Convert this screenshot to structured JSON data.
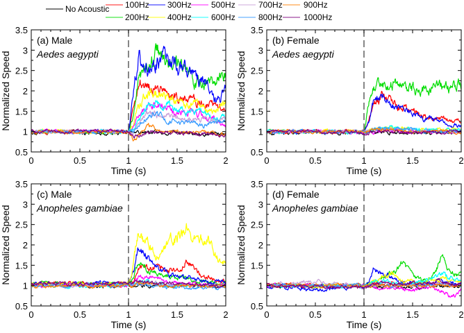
{
  "chart_data": {
    "type": "line",
    "legend": {
      "placement": "top",
      "entries": [
        {
          "name": "No Acoustic",
          "color": "#000000"
        },
        {
          "name": "100Hz",
          "color": "#ff0000"
        },
        {
          "name": "200Hz",
          "color": "#00dd00"
        },
        {
          "name": "300Hz",
          "color": "#0000ff"
        },
        {
          "name": "400Hz",
          "color": "#ffff00"
        },
        {
          "name": "500Hz",
          "color": "#ff00ff"
        },
        {
          "name": "600Hz",
          "color": "#00ffff"
        },
        {
          "name": "700Hz",
          "color": "#c8a0d8"
        },
        {
          "name": "800Hz",
          "color": "#3399ff"
        },
        {
          "name": "900Hz",
          "color": "#ff8000"
        },
        {
          "name": "1000Hz",
          "color": "#800080"
        }
      ]
    },
    "xlabel": "Time (s)",
    "ylabel": "Normalized Speed",
    "xlim": [
      0,
      2
    ],
    "ylim": [
      0.5,
      3.5
    ],
    "xticks": [
      "0",
      "0.5",
      "1",
      "1.5",
      "2"
    ],
    "yticks": [
      "0.5",
      "1",
      "1.5",
      "2",
      "2.5",
      "3",
      "3.5"
    ],
    "stimulus_onset_s": 1,
    "t": [
      0,
      0.5,
      1.0,
      1.05,
      1.1,
      1.2,
      1.3,
      1.4,
      1.5,
      1.6,
      1.7,
      1.8,
      1.9,
      2.0
    ],
    "panels": [
      {
        "label": "(a)  Male",
        "species": "Aedes aegypti",
        "series": [
          {
            "name": "No Acoustic",
            "values": [
              0.97,
              0.97,
              0.97,
              0.97,
              0.97,
              0.97,
              0.97,
              0.97,
              0.97,
              0.97,
              0.97,
              0.96,
              0.95,
              0.95
            ]
          },
          {
            "name": "100Hz",
            "values": [
              1.0,
              1.0,
              1.0,
              1.5,
              2.2,
              2.1,
              2.0,
              1.9,
              1.85,
              1.9,
              1.7,
              1.7,
              1.6,
              1.5
            ]
          },
          {
            "name": "200Hz",
            "values": [
              1.0,
              1.0,
              1.0,
              1.4,
              2.3,
              2.6,
              3.0,
              2.6,
              2.6,
              2.4,
              2.2,
              2.2,
              2.2,
              2.4
            ]
          },
          {
            "name": "300Hz",
            "values": [
              1.0,
              1.0,
              1.0,
              2.0,
              2.8,
              2.6,
              2.7,
              2.9,
              2.6,
              2.6,
              2.3,
              2.2,
              1.7,
              2.0
            ]
          },
          {
            "name": "400Hz",
            "values": [
              1.0,
              1.0,
              1.0,
              1.2,
              1.6,
              2.0,
              1.9,
              1.9,
              1.8,
              1.65,
              1.7,
              1.6,
              1.5,
              1.7
            ]
          },
          {
            "name": "500Hz",
            "values": [
              1.0,
              1.0,
              1.0,
              1.1,
              1.4,
              1.7,
              1.7,
              1.6,
              1.5,
              1.5,
              1.45,
              1.4,
              1.3,
              1.1
            ]
          },
          {
            "name": "600Hz",
            "values": [
              1.0,
              1.0,
              1.0,
              1.05,
              1.3,
              1.6,
              1.7,
              1.65,
              1.55,
              1.5,
              1.5,
              1.4,
              1.3,
              1.35
            ]
          },
          {
            "name": "700Hz",
            "values": [
              1.0,
              1.0,
              1.0,
              1.0,
              1.2,
              1.4,
              1.4,
              1.4,
              1.35,
              1.3,
              1.3,
              1.3,
              1.25,
              1.3
            ]
          },
          {
            "name": "800Hz",
            "values": [
              1.0,
              1.0,
              1.0,
              1.0,
              1.15,
              1.4,
              1.45,
              1.3,
              1.25,
              1.2,
              1.2,
              1.15,
              1.2,
              1.25
            ]
          },
          {
            "name": "900Hz",
            "values": [
              1.0,
              1.0,
              1.0,
              0.8,
              0.9,
              1.15,
              1.05,
              1.0,
              1.0,
              1.0,
              1.0,
              1.0,
              0.97,
              0.95
            ]
          },
          {
            "name": "1000Hz",
            "values": [
              1.0,
              1.0,
              1.02,
              0.85,
              0.9,
              0.97,
              0.98,
              0.97,
              0.96,
              0.95,
              0.94,
              0.93,
              0.93,
              0.92
            ]
          }
        ]
      },
      {
        "label": "(b) Female",
        "species": "Aedes aegypti",
        "series": [
          {
            "name": "No Acoustic",
            "values": [
              0.98,
              0.98,
              0.98,
              0.98,
              0.98,
              0.98,
              0.98,
              0.98,
              0.98,
              0.98,
              0.98,
              0.98,
              0.98,
              0.98
            ]
          },
          {
            "name": "100Hz",
            "values": [
              1.0,
              1.0,
              1.0,
              1.2,
              1.7,
              1.9,
              1.7,
              1.6,
              1.5,
              1.45,
              1.35,
              1.3,
              1.25,
              1.2
            ]
          },
          {
            "name": "200Hz",
            "values": [
              1.0,
              1.0,
              1.0,
              1.7,
              2.1,
              2.2,
              2.15,
              2.1,
              2.1,
              2.0,
              2.05,
              2.1,
              2.0,
              2.2
            ]
          },
          {
            "name": "300Hz",
            "values": [
              1.0,
              1.0,
              1.0,
              1.2,
              1.7,
              1.85,
              1.65,
              1.5,
              1.4,
              1.35,
              1.3,
              1.2,
              1.15,
              1.1
            ]
          },
          {
            "name": "400Hz",
            "values": [
              1.0,
              1.0,
              1.0,
              1.0,
              1.05,
              1.1,
              1.1,
              1.08,
              1.05,
              1.05,
              1.05,
              1.05,
              1.05,
              1.05
            ]
          },
          {
            "name": "500Hz",
            "values": [
              1.0,
              1.0,
              1.0,
              1.0,
              1.0,
              1.05,
              1.05,
              1.0,
              1.0,
              1.0,
              1.0,
              1.0,
              1.0,
              1.0
            ]
          },
          {
            "name": "600Hz",
            "values": [
              1.0,
              1.0,
              1.0,
              1.0,
              1.05,
              1.1,
              1.1,
              1.05,
              1.05,
              1.05,
              1.05,
              1.02,
              1.02,
              1.02
            ]
          },
          {
            "name": "700Hz",
            "values": [
              1.0,
              1.0,
              1.0,
              1.0,
              1.0,
              1.05,
              1.05,
              1.05,
              1.0,
              1.0,
              1.0,
              1.0,
              1.0,
              1.0
            ]
          },
          {
            "name": "800Hz",
            "values": [
              1.0,
              1.0,
              1.0,
              1.0,
              1.05,
              1.1,
              1.05,
              1.05,
              1.05,
              1.0,
              1.0,
              1.0,
              1.0,
              1.0
            ]
          },
          {
            "name": "900Hz",
            "values": [
              1.0,
              1.0,
              1.0,
              1.0,
              1.05,
              1.05,
              1.05,
              1.0,
              1.0,
              1.0,
              1.0,
              1.0,
              1.0,
              1.0
            ]
          },
          {
            "name": "1000Hz",
            "values": [
              1.0,
              1.0,
              0.97,
              0.97,
              1.0,
              1.0,
              1.0,
              1.0,
              0.98,
              0.98,
              0.98,
              0.98,
              0.98,
              0.98
            ]
          }
        ]
      },
      {
        "label": "(c) Male",
        "species": "Anopheles gambiae",
        "series": [
          {
            "name": "No Acoustic",
            "values": [
              1.0,
              1.0,
              1.0,
              1.0,
              1.0,
              1.0,
              1.0,
              1.0,
              1.0,
              1.0,
              1.0,
              1.0,
              1.0,
              1.0
            ]
          },
          {
            "name": "100Hz",
            "values": [
              1.05,
              1.05,
              1.05,
              1.1,
              1.4,
              1.4,
              1.5,
              1.4,
              1.4,
              1.6,
              1.3,
              1.2,
              1.15,
              1.1
            ]
          },
          {
            "name": "200Hz",
            "values": [
              1.05,
              1.05,
              1.05,
              1.2,
              1.6,
              1.4,
              1.3,
              1.2,
              1.2,
              1.15,
              1.1,
              1.1,
              1.05,
              1.05
            ]
          },
          {
            "name": "300Hz",
            "values": [
              1.05,
              1.05,
              1.05,
              1.3,
              1.9,
              1.7,
              1.4,
              1.3,
              1.2,
              1.2,
              1.15,
              1.1,
              1.1,
              1.1
            ]
          },
          {
            "name": "400Hz",
            "values": [
              1.05,
              1.05,
              1.05,
              1.5,
              2.3,
              2.0,
              1.7,
              2.0,
              2.2,
              2.5,
              2.0,
              2.2,
              1.7,
              1.5
            ]
          },
          {
            "name": "500Hz",
            "values": [
              1.0,
              1.0,
              1.0,
              1.05,
              1.2,
              1.2,
              1.15,
              1.1,
              1.05,
              1.05,
              1.05,
              1.0,
              1.0,
              1.0
            ]
          },
          {
            "name": "600Hz",
            "values": [
              1.0,
              1.0,
              1.0,
              1.05,
              1.1,
              1.1,
              1.05,
              1.0,
              1.0,
              1.0,
              1.0,
              1.0,
              1.0,
              0.95
            ]
          },
          {
            "name": "700Hz",
            "values": [
              1.0,
              1.0,
              1.0,
              1.0,
              1.05,
              1.05,
              1.05,
              1.0,
              1.0,
              1.0,
              1.0,
              1.0,
              1.0,
              1.0
            ]
          },
          {
            "name": "800Hz",
            "values": [
              1.0,
              1.0,
              1.0,
              1.0,
              1.05,
              1.0,
              1.0,
              0.95,
              0.95,
              0.95,
              0.95,
              0.95,
              0.95,
              0.95
            ]
          },
          {
            "name": "900Hz",
            "values": [
              1.0,
              1.0,
              1.0,
              1.0,
              1.05,
              1.05,
              1.0,
              1.0,
              1.0,
              1.0,
              1.0,
              1.0,
              1.0,
              1.0
            ]
          },
          {
            "name": "1000Hz",
            "values": [
              1.05,
              1.05,
              1.05,
              1.05,
              1.1,
              1.1,
              1.05,
              1.05,
              1.05,
              1.05,
              1.05,
              1.0,
              1.0,
              1.0
            ]
          }
        ]
      },
      {
        "label": "(d) Female",
        "species": "Anopheles gambiae",
        "series": [
          {
            "name": "No Acoustic",
            "values": [
              0.98,
              0.98,
              0.98,
              0.98,
              0.98,
              0.98,
              0.98,
              0.98,
              0.98,
              0.98,
              0.98,
              0.98,
              0.98,
              0.98
            ]
          },
          {
            "name": "100Hz",
            "values": [
              1.05,
              1.0,
              1.0,
              1.0,
              1.05,
              1.05,
              1.05,
              1.05,
              1.05,
              1.05,
              1.05,
              1.05,
              1.05,
              1.05
            ]
          },
          {
            "name": "200Hz",
            "values": [
              1.0,
              1.0,
              1.0,
              1.05,
              1.1,
              1.2,
              1.3,
              1.55,
              1.2,
              1.1,
              1.2,
              1.7,
              1.3,
              1.3
            ]
          },
          {
            "name": "300Hz",
            "values": [
              1.0,
              0.9,
              1.0,
              1.1,
              1.4,
              1.3,
              1.2,
              1.1,
              1.05,
              1.05,
              1.1,
              1.1,
              1.05,
              1.05
            ]
          },
          {
            "name": "400Hz",
            "values": [
              1.0,
              1.0,
              1.0,
              1.05,
              1.1,
              1.2,
              1.3,
              1.1,
              1.1,
              1.1,
              1.1,
              1.2,
              1.1,
              1.1
            ]
          },
          {
            "name": "500Hz",
            "values": [
              1.0,
              1.0,
              1.0,
              1.0,
              0.95,
              0.95,
              0.95,
              0.92,
              0.9,
              0.95,
              0.95,
              0.9,
              0.7,
              0.9
            ]
          },
          {
            "name": "600Hz",
            "values": [
              1.0,
              1.0,
              1.0,
              1.05,
              1.1,
              1.1,
              1.05,
              1.05,
              1.05,
              1.1,
              1.2,
              1.3,
              1.2,
              1.1
            ]
          },
          {
            "name": "700Hz",
            "values": [
              1.0,
              1.1,
              0.95,
              1.0,
              1.0,
              1.0,
              1.0,
              1.0,
              1.0,
              1.0,
              1.05,
              1.05,
              1.0,
              1.0
            ]
          },
          {
            "name": "800Hz",
            "values": [
              1.0,
              1.0,
              1.0,
              1.0,
              1.0,
              1.0,
              1.0,
              1.0,
              1.0,
              1.0,
              1.0,
              1.05,
              1.0,
              1.0
            ]
          },
          {
            "name": "900Hz",
            "values": [
              1.0,
              1.0,
              1.0,
              1.0,
              1.0,
              1.0,
              1.0,
              1.0,
              1.0,
              1.0,
              1.0,
              1.0,
              1.0,
              1.0
            ]
          },
          {
            "name": "1000Hz",
            "values": [
              1.0,
              1.0,
              0.95,
              0.95,
              1.05,
              1.05,
              1.05,
              1.05,
              1.05,
              1.05,
              1.1,
              1.1,
              1.05,
              1.05
            ]
          }
        ]
      }
    ]
  }
}
